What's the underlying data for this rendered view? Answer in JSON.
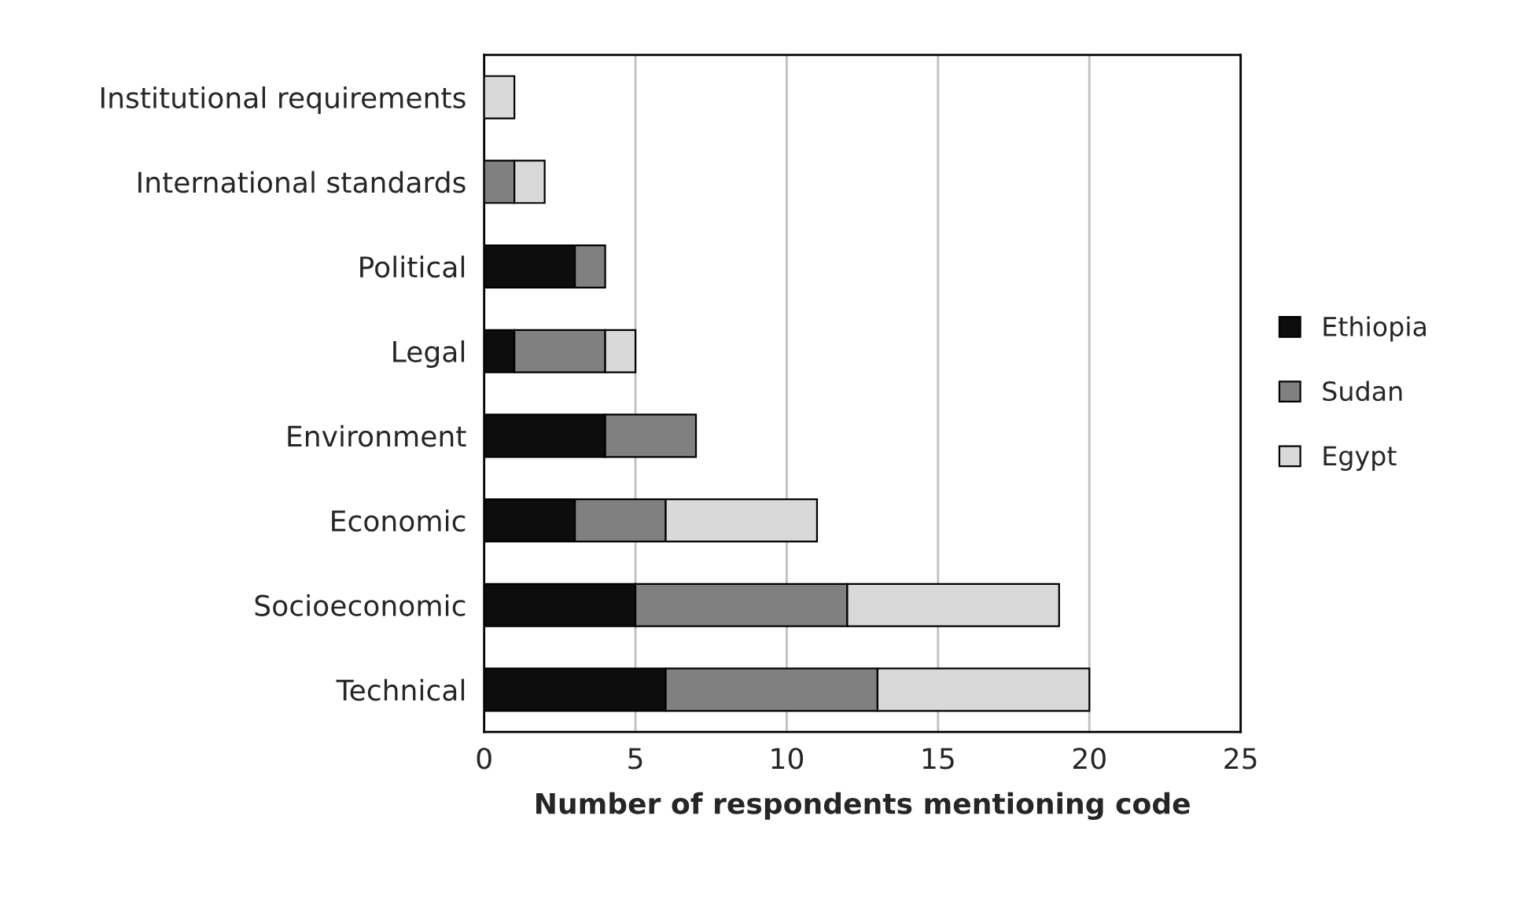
{
  "chart_data": {
    "type": "bar",
    "orientation": "horizontal",
    "stacked": true,
    "categories": [
      "Institutional requirements",
      "International standards",
      "Political",
      "Legal",
      "Environment",
      "Economic",
      "Socioeconomic",
      "Technical"
    ],
    "series": [
      {
        "name": "Ethiopia",
        "color": "#0d0d0d",
        "values": [
          null,
          null,
          3,
          1,
          4,
          3,
          5,
          6
        ]
      },
      {
        "name": "Sudan",
        "color": "#808080",
        "values": [
          null,
          1,
          1,
          3,
          3,
          3,
          7,
          7
        ]
      },
      {
        "name": "Egypt",
        "color": "#d9d9d9",
        "values": [
          1,
          1,
          null,
          1,
          null,
          5,
          7,
          7
        ]
      }
    ],
    "xlabel": "Number of respondents mentioning code",
    "xlim": [
      0,
      25
    ],
    "xticks": [
      0,
      5,
      10,
      15,
      20,
      25
    ],
    "grid": "x",
    "legend": "right"
  }
}
